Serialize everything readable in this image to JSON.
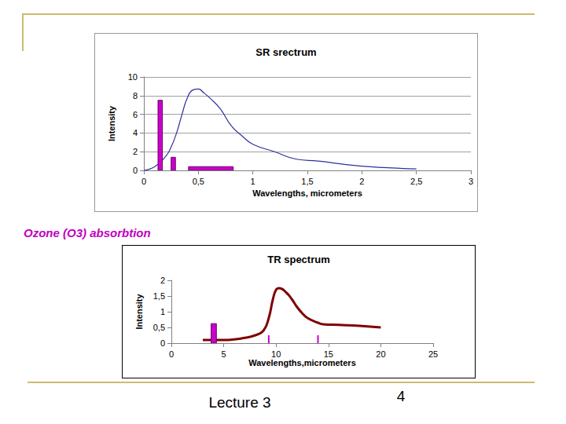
{
  "chart_data": [
    {
      "type": "line",
      "title": "SR srectrum",
      "x_label": "Wavelengths, micrometers",
      "y_label": "Intensity",
      "xlim": [
        0,
        3
      ],
      "xticks": [
        0,
        {
          "value": 0.5,
          "label": "0,5"
        },
        1,
        {
          "value": 1.5,
          "label": "1,5"
        },
        2,
        {
          "value": 2.5,
          "label": "2,5"
        },
        3
      ],
      "ylim": [
        0,
        10
      ],
      "yticks": [
        0,
        2,
        4,
        6,
        8,
        10
      ],
      "grid": true,
      "series": [
        {
          "type": "line",
          "color": "#2f2f9f",
          "x": [
            0,
            0.1,
            0.2,
            0.25,
            0.3,
            0.35,
            0.4,
            0.45,
            0.5,
            0.55,
            0.6,
            0.7,
            0.8,
            0.9,
            1.0,
            1.2,
            1.4,
            1.6,
            1.8,
            2.0,
            2.2,
            2.5
          ],
          "values": [
            0,
            0.4,
            1.5,
            2.5,
            4.0,
            6.0,
            7.8,
            8.6,
            8.7,
            8.3,
            7.8,
            6.6,
            4.8,
            3.7,
            2.8,
            2.0,
            1.2,
            1.0,
            0.7,
            0.45,
            0.3,
            0.15
          ]
        },
        {
          "type": "band",
          "color": "#cc00cc",
          "x_start": [
            0.13,
            0.25,
            0.41
          ],
          "x_end": [
            0.17,
            0.29,
            0.82
          ],
          "values": [
            7.5,
            1.4,
            0.4
          ]
        }
      ]
    },
    {
      "type": "line",
      "title": "TR spectrum",
      "x_label": "Wavelengths,micrometers",
      "y_label": "Intensity",
      "xlim": [
        0,
        25
      ],
      "xticks": [
        0,
        5,
        10,
        15,
        20,
        25
      ],
      "ylim": [
        0,
        2
      ],
      "yticks": [
        0,
        {
          "value": 0.5,
          "label": "0,5"
        },
        1,
        {
          "value": 1.5,
          "label": "1,5"
        },
        2
      ],
      "grid": false,
      "series": [
        {
          "type": "line",
          "color": "#800000",
          "x": [
            3,
            4,
            5,
            6,
            7,
            8,
            8.8,
            9.3,
            9.7,
            10,
            10.3,
            11,
            11.5,
            12,
            12.5,
            13,
            14,
            14.5,
            16,
            18,
            20
          ],
          "values": [
            0.1,
            0.1,
            0.1,
            0.12,
            0.17,
            0.25,
            0.4,
            0.8,
            1.4,
            1.7,
            1.75,
            1.6,
            1.4,
            1.15,
            0.95,
            0.8,
            0.65,
            0.6,
            0.58,
            0.55,
            0.5
          ]
        },
        {
          "type": "band",
          "color": "#cc00cc",
          "x_start": [
            3.8
          ],
          "x_end": [
            4.3
          ],
          "values": [
            0.62
          ]
        },
        {
          "type": "vline",
          "color": "#cc00cc",
          "x": [
            9.3,
            14
          ],
          "values": [
            0.25,
            0.25
          ]
        }
      ]
    }
  ],
  "annotation": "Ozone (O3) absorbtion",
  "footer": {
    "lecture": "Lecture 3",
    "page": 4
  }
}
